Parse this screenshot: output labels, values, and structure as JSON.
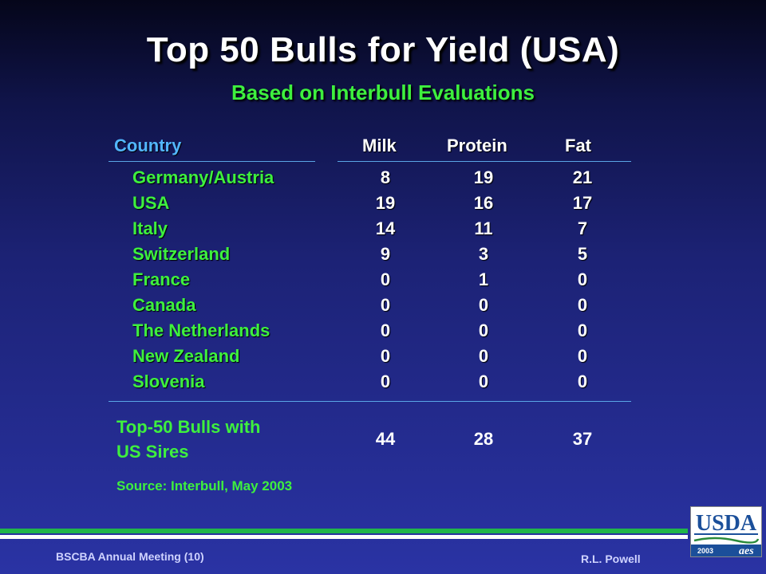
{
  "title": "Top 50 Bulls for Yield (USA)",
  "subtitle": "Based on Interbull Evaluations",
  "table": {
    "headers": {
      "country": "Country",
      "milk": "Milk",
      "protein": "Protein",
      "fat": "Fat"
    },
    "rows": [
      {
        "country": "Germany/Austria",
        "milk": "8",
        "protein": "19",
        "fat": "21"
      },
      {
        "country": "USA",
        "milk": "19",
        "protein": "16",
        "fat": "17"
      },
      {
        "country": "Italy",
        "milk": "14",
        "protein": "11",
        "fat": "7"
      },
      {
        "country": "Switzerland",
        "milk": "9",
        "protein": "3",
        "fat": "5"
      },
      {
        "country": "France",
        "milk": "0",
        "protein": "1",
        "fat": "0"
      },
      {
        "country": "Canada",
        "milk": "0",
        "protein": "0",
        "fat": "0"
      },
      {
        "country": "The Netherlands",
        "milk": "0",
        "protein": "0",
        "fat": "0"
      },
      {
        "country": "New Zealand",
        "milk": "0",
        "protein": "0",
        "fat": "0"
      },
      {
        "country": "Slovenia",
        "milk": "0",
        "protein": "0",
        "fat": "0"
      }
    ],
    "total": {
      "label_line1": "Top-50 Bulls with",
      "label_line2": "US Sires",
      "milk": "44",
      "protein": "28",
      "fat": "37"
    }
  },
  "source": "Source: Interbull, May 2003",
  "footer": {
    "left": "BSCBA Annual Meeting (10)",
    "right": "R.L. Powell"
  },
  "logo": {
    "text": "USDA",
    "year": "2003",
    "mark": "aes"
  },
  "colors": {
    "title": "#ffffff",
    "green_text": "#3ef03e",
    "header_blue": "#52b6ff",
    "rule": "#5aa6e6"
  }
}
